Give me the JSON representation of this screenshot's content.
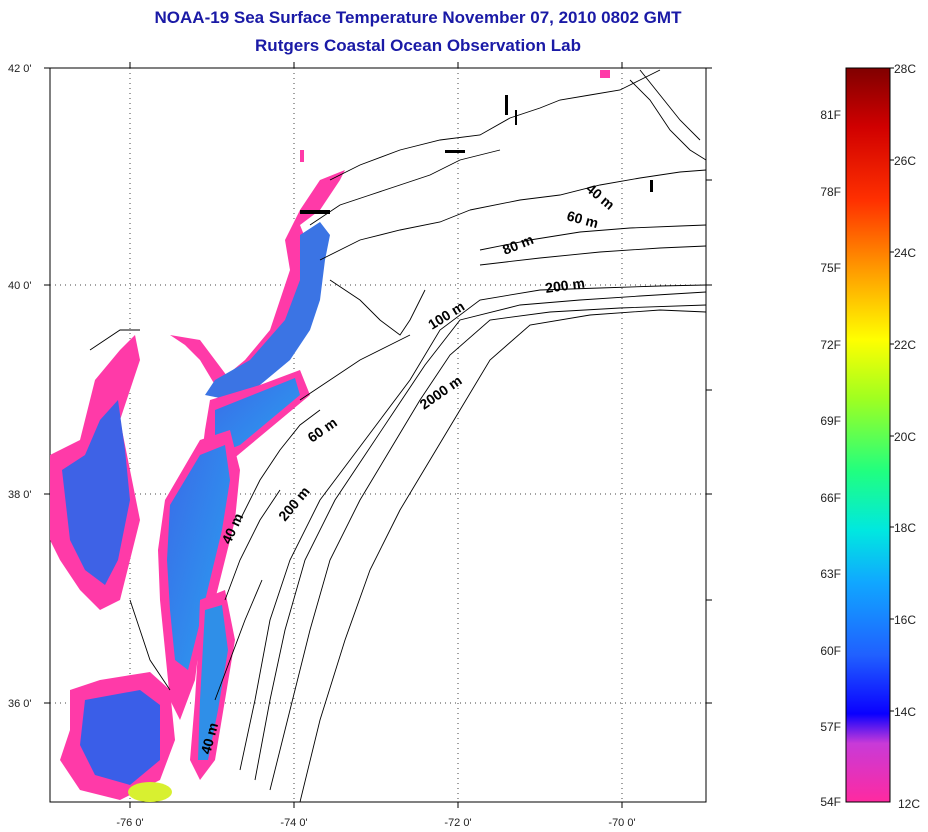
{
  "title": {
    "line1": "NOAA-19 Sea Surface Temperature November 07, 2010 0802 GMT",
    "line2": "Rutgers Coastal Ocean Observation Lab"
  },
  "axes": {
    "lat_ticks": [
      "42 0'",
      "40 0'",
      "38 0'",
      "36 0'"
    ],
    "lon_ticks": [
      "-76 0'",
      "-74 0'",
      "-72 0'",
      "-70 0'"
    ]
  },
  "contour_labels": [
    "40 m",
    "60 m",
    "80 m",
    "200 m",
    "100 m",
    "2000 m",
    "60 m",
    "200 m",
    "40 m",
    "40 m"
  ],
  "colorbar": {
    "fahrenheit": [
      "81F",
      "78F",
      "75F",
      "72F",
      "69F",
      "66F",
      "63F",
      "60F",
      "57F",
      "54F"
    ],
    "celsius": [
      "28C",
      "26C",
      "24C",
      "22C",
      "20C",
      "18C",
      "16C",
      "14C",
      "12C"
    ]
  },
  "colors": {
    "title": "#1a1aa6",
    "land_edge": "#ff3aa8",
    "water_blue": "#2f7de0"
  }
}
